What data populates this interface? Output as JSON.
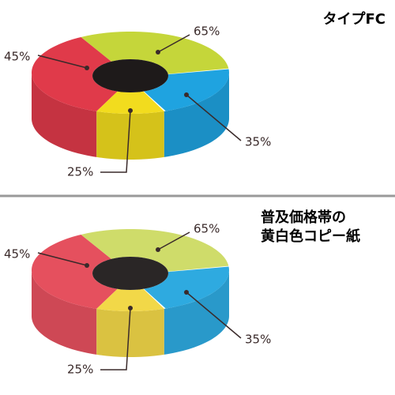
{
  "panels": [
    {
      "title": [
        "タイプFC"
      ],
      "labels": [
        "45%",
        "65%",
        "35%",
        "25%"
      ]
    },
    {
      "title": [
        "普及価格帯の",
        "黄白色コピー紙"
      ],
      "labels": [
        "45%",
        "65%",
        "35%",
        "25%"
      ]
    }
  ]
}
